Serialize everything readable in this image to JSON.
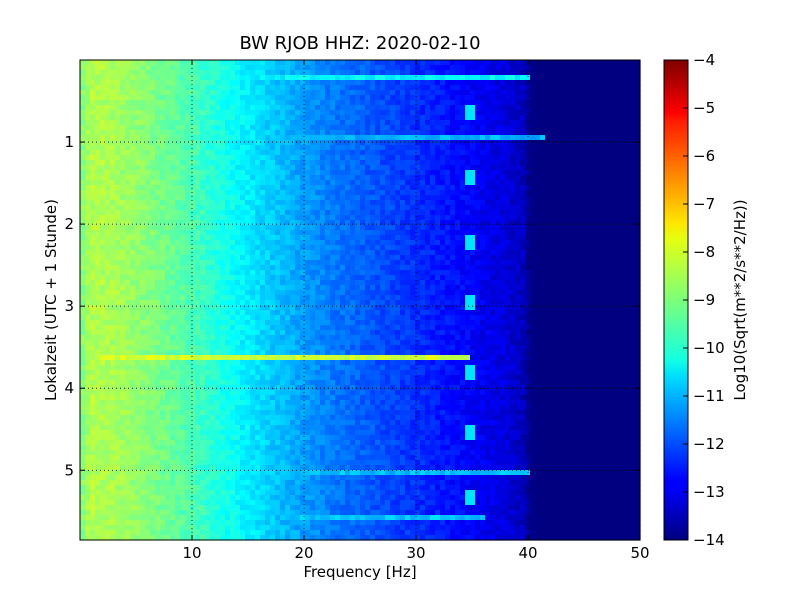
{
  "chart_data": {
    "type": "heatmap",
    "title": "BW RJOB HHZ: 2020-02-10",
    "xlabel": "Frequency [Hz]",
    "ylabel": "Lokalzeit (UTC + 1 Stunde)",
    "xlim": [
      0,
      50
    ],
    "ylim": [
      5.85,
      0.0
    ],
    "x_ticks": [
      10,
      20,
      30,
      40,
      50
    ],
    "y_ticks": [
      1,
      2,
      3,
      4,
      5
    ],
    "grid": true,
    "colormap": "jet",
    "colorbar": {
      "label": "Log10(Sqrt(m**2/s**2/Hz))",
      "range": [
        -14,
        -4
      ],
      "ticks": [
        -14,
        -13,
        -12,
        -11,
        -10,
        -9,
        -8,
        -7,
        -6,
        -5,
        -4
      ]
    },
    "spectrum_profile": {
      "frequency_hz": [
        0,
        1,
        3,
        5,
        8,
        10,
        12,
        15,
        18,
        20,
        22,
        25,
        28,
        30,
        33,
        36,
        38,
        39.5,
        40.5,
        50
      ],
      "log10_amplitude": [
        -9.0,
        -8.5,
        -8.6,
        -8.8,
        -9.2,
        -9.5,
        -9.9,
        -10.4,
        -10.9,
        -11.2,
        -11.5,
        -11.8,
        -12.1,
        -12.3,
        -12.6,
        -12.9,
        -13.1,
        -13.4,
        -14.0,
        -14.0
      ]
    },
    "features": [
      {
        "type": "horizontal_band",
        "time_h": 3.6,
        "freq_range_hz": [
          1.5,
          35
        ],
        "log10_amplitude": -8.2
      },
      {
        "type": "horizontal_band",
        "time_h": 0.2,
        "freq_range_hz": [
          16,
          40
        ],
        "log10_amplitude": -10.3
      },
      {
        "type": "horizontal_band",
        "time_h": 0.95,
        "freq_range_hz": [
          20,
          41.5
        ],
        "log10_amplitude": -11.0
      },
      {
        "type": "horizontal_band",
        "time_h": 5.05,
        "freq_range_hz": [
          18,
          40
        ],
        "log10_amplitude": -10.9
      },
      {
        "type": "horizontal_band",
        "time_h": 5.6,
        "freq_range_hz": [
          18,
          36
        ],
        "log10_amplitude": -10.8
      },
      {
        "type": "periodic_glitch",
        "freq_hz": 34.8,
        "times_h": [
          0.7,
          1.5,
          2.3,
          3.05,
          3.85,
          4.6,
          5.4
        ],
        "log10_amplitude": -10.5
      }
    ]
  }
}
